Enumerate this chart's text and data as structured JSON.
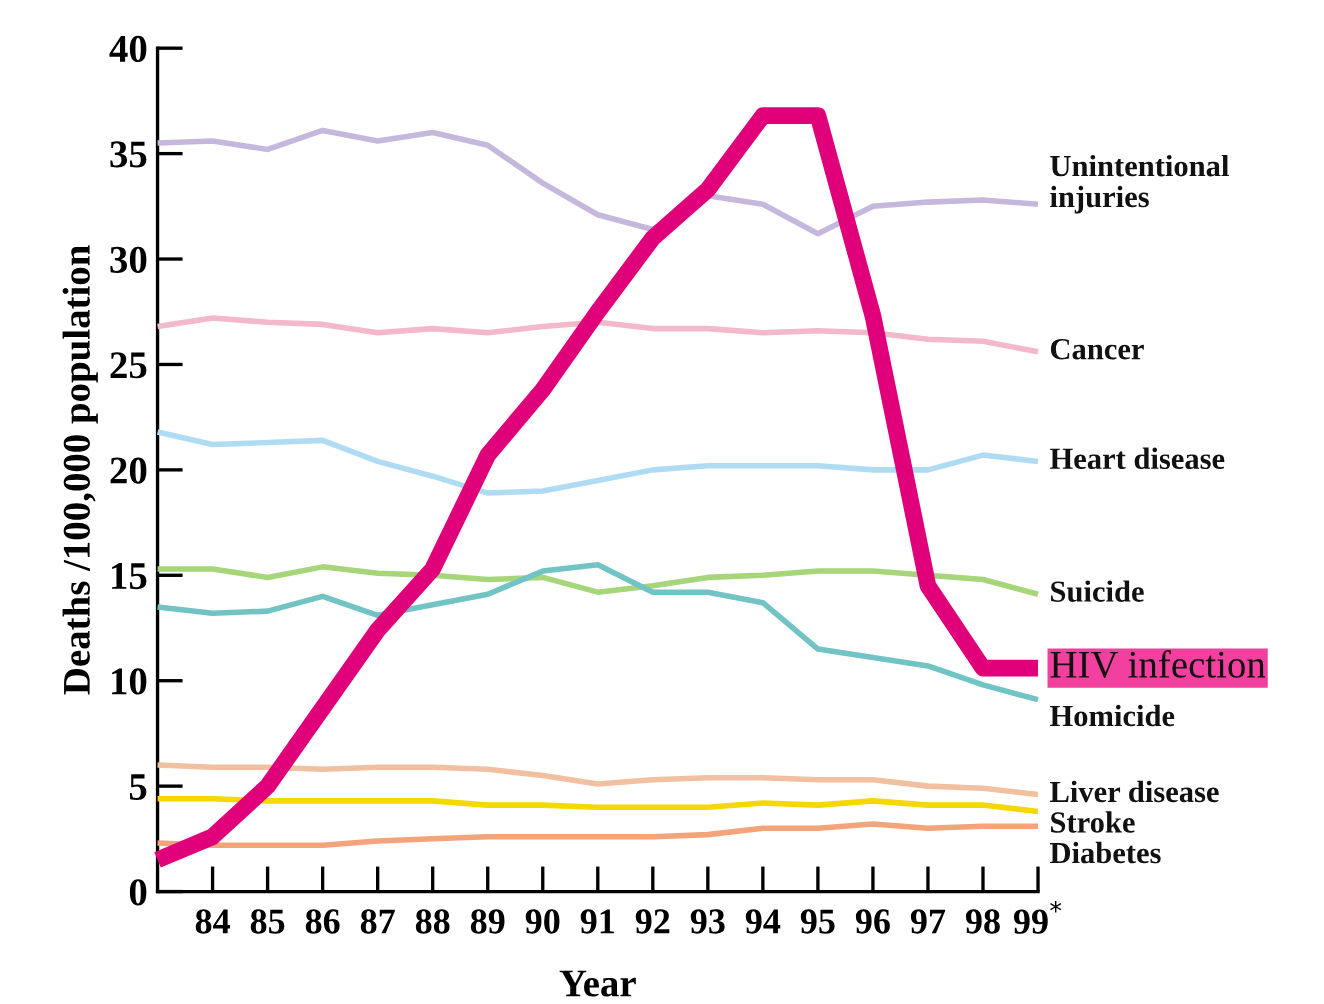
{
  "chart_data": {
    "type": "line",
    "xlabel": "Year",
    "ylabel": "Deaths /100,000 population",
    "x": [
      83,
      84,
      85,
      86,
      87,
      88,
      89,
      90,
      91,
      92,
      93,
      94,
      95,
      96,
      97,
      98,
      99
    ],
    "xlim": [
      83,
      99
    ],
    "xticks": [
      84,
      85,
      86,
      87,
      88,
      89,
      90,
      91,
      92,
      93,
      94,
      95,
      96,
      97,
      98,
      {
        "value": 99,
        "label": "99$^{*}$"
      }
    ],
    "ylim": [
      0,
      40
    ],
    "yticks": [
      0,
      5,
      10,
      15,
      20,
      25,
      30,
      35,
      40
    ],
    "grid": false,
    "legend": false,
    "marker": "none",
    "line_style": "solid",
    "series": [
      {
        "name": "Unintentional\ninjuries",
        "color": "#c6b8dc",
        "values": [
          35.5,
          35.6,
          35.2,
          36.1,
          35.6,
          36.0,
          35.4,
          33.6,
          32.1,
          31.4,
          33.0,
          32.6,
          31.2,
          32.5,
          32.7,
          32.8,
          32.6
        ]
      },
      {
        "name": "Cancer",
        "color": "#f4b8cb",
        "values": [
          26.8,
          27.2,
          27.0,
          26.9,
          26.5,
          26.7,
          26.5,
          26.8,
          27.0,
          26.7,
          26.7,
          26.5,
          26.6,
          26.5,
          26.2,
          26.1,
          25.6
        ]
      },
      {
        "name": "Heart disease",
        "color": "#b0dcf3",
        "values": [
          21.8,
          21.2,
          21.3,
          21.4,
          20.4,
          19.7,
          18.9,
          19.0,
          19.5,
          20.0,
          20.2,
          20.2,
          20.2,
          20.0,
          20.0,
          20.7,
          20.4
        ]
      },
      {
        "name": "Suicide",
        "color": "#a6d57a",
        "values": [
          15.3,
          15.3,
          14.9,
          15.4,
          15.1,
          15.0,
          14.8,
          14.9,
          14.2,
          14.5,
          14.9,
          15.0,
          15.2,
          15.2,
          15.0,
          14.8,
          14.1
        ]
      },
      {
        "name": "Homicide",
        "color": "#72c3c3",
        "values": [
          13.5,
          13.2,
          13.3,
          14.0,
          13.1,
          13.6,
          14.1,
          15.2,
          15.5,
          14.2,
          14.2,
          13.7,
          11.5,
          11.1,
          10.7,
          9.8,
          9.1
        ]
      },
      {
        "name": "Liver disease",
        "color": "#f0c0a0",
        "values": [
          6.0,
          5.9,
          5.9,
          5.8,
          5.9,
          5.9,
          5.8,
          5.5,
          5.1,
          5.3,
          5.4,
          5.4,
          5.3,
          5.3,
          5.0,
          4.9,
          4.6
        ]
      },
      {
        "name": "Stroke",
        "color": "#f5d800",
        "values": [
          4.4,
          4.4,
          4.3,
          4.3,
          4.3,
          4.3,
          4.1,
          4.1,
          4.0,
          4.0,
          4.0,
          4.2,
          4.1,
          4.3,
          4.1,
          4.1,
          3.8
        ]
      },
      {
        "name": "Diabetes",
        "color": "#f4a47a",
        "values": [
          2.3,
          2.2,
          2.2,
          2.2,
          2.4,
          2.5,
          2.6,
          2.6,
          2.6,
          2.6,
          2.7,
          3.0,
          3.0,
          3.2,
          3.0,
          3.1,
          3.1
        ]
      },
      {
        "name": "HIV infection",
        "color": "#e0007a",
        "values": [
          1.5,
          2.6,
          5.0,
          8.7,
          12.4,
          15.3,
          20.7,
          23.8,
          27.5,
          31.0,
          33.3,
          36.8,
          36.8,
          27.3,
          14.5,
          10.6,
          10.6
        ]
      }
    ]
  }
}
